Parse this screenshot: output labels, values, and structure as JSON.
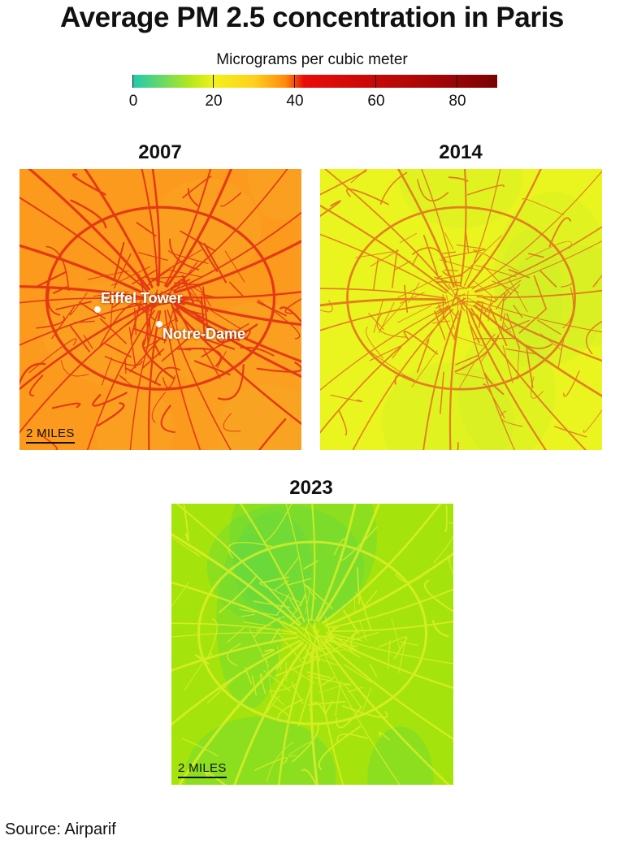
{
  "title": "Average PM 2.5 concentration in Paris",
  "legend": {
    "label": "Micrograms per cubic meter",
    "ticks": [
      "0",
      "20",
      "40",
      "60",
      "80"
    ],
    "range": [
      0,
      90
    ],
    "colors": [
      "#1ec9b1",
      "#b6e81c",
      "#f2f21a",
      "#ffcf1e",
      "#ff8a0c",
      "#e80d0a",
      "#c40908",
      "#a00606",
      "#7a0303"
    ]
  },
  "maps": [
    {
      "year": "2007",
      "scale_label": "2 MILES",
      "base_color": "#fb9a1c",
      "road_color": "#e02a12",
      "labels": [
        "Eiffel Tower",
        "Notre-Dame"
      ]
    },
    {
      "year": "2014",
      "base_color": "#eaf41e",
      "road_color": "#e05a1e"
    },
    {
      "year": "2023",
      "scale_label": "2 MILES",
      "base_color": "#a4e40c",
      "road_color": "#e8f22a"
    }
  ],
  "source": "Source: Airparif"
}
